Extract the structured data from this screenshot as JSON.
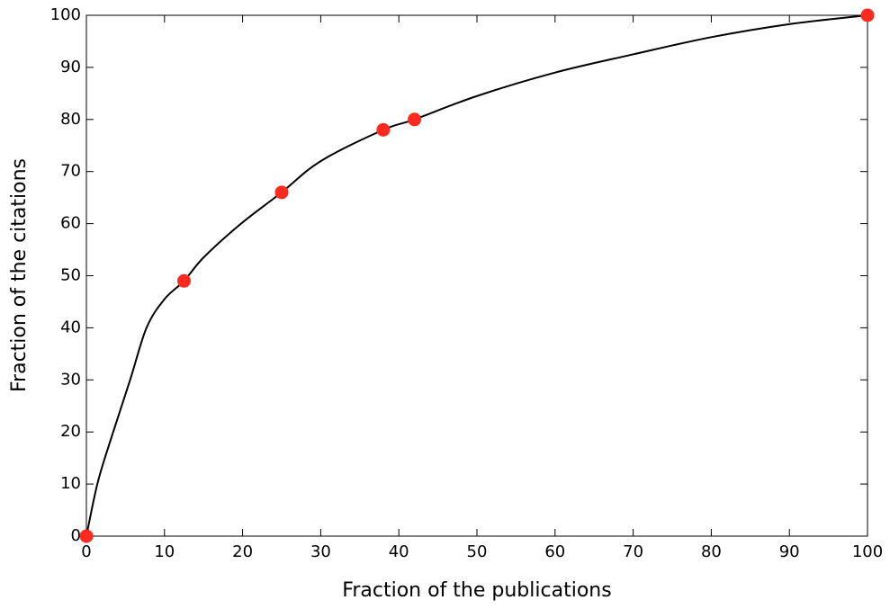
{
  "chart_data": {
    "type": "line",
    "xlabel": "Fraction of the publications",
    "ylabel": "Fraction of the citations",
    "x": [
      0,
      1.4,
      3,
      5.6,
      7.7,
      10,
      12.5,
      15,
      19.8,
      25,
      30,
      38,
      42,
      50,
      60,
      70,
      80,
      90,
      100
    ],
    "values": [
      0,
      10,
      18,
      30,
      40,
      45.5,
      49,
      53.5,
      60,
      66,
      72,
      78,
      80,
      84.5,
      89,
      92.5,
      95.8,
      98.3,
      100
    ],
    "color": "#000000",
    "markers": {
      "x": [
        0,
        12.5,
        25,
        38,
        42,
        100
      ],
      "values": [
        0,
        49,
        66,
        78,
        80,
        100
      ],
      "color": "#ff2a1f"
    },
    "xlim": [
      0,
      100
    ],
    "ylim": [
      0,
      100
    ],
    "xticks": [
      0,
      10,
      20,
      30,
      40,
      50,
      60,
      70,
      80,
      90,
      100
    ],
    "yticks": [
      0,
      10,
      20,
      30,
      40,
      50,
      60,
      70,
      80,
      90,
      100
    ]
  }
}
